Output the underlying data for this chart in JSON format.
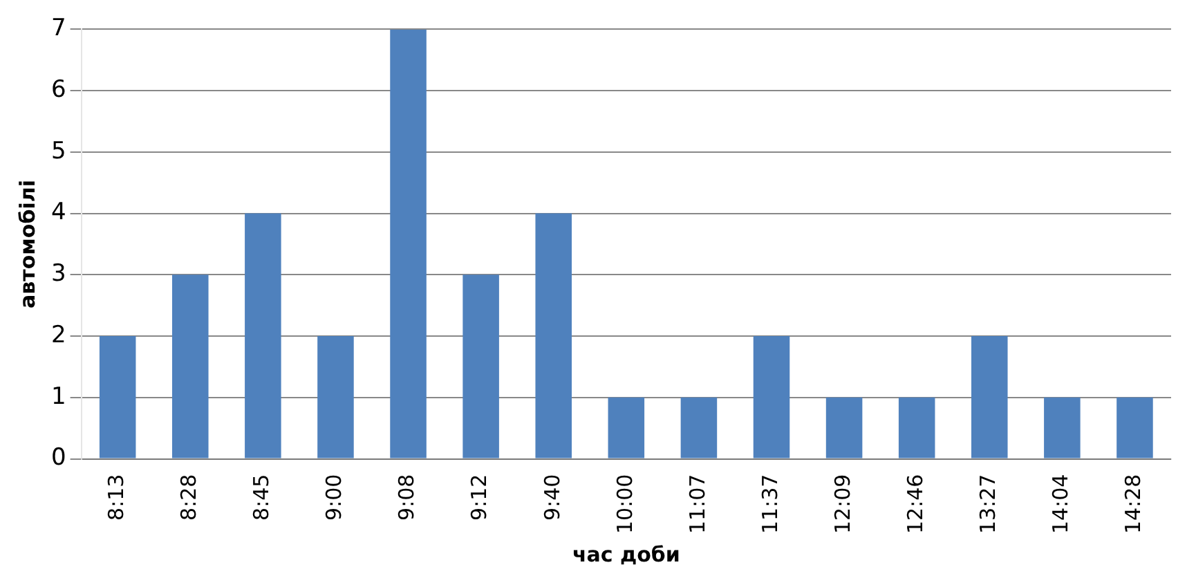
{
  "chart_data": {
    "type": "bar",
    "xlabel": "час доби",
    "ylabel": "автомобілі",
    "categories": [
      "8:13",
      "8:28",
      "8:45",
      "9:00",
      "9:08",
      "9:12",
      "9:40",
      "10:00",
      "11:07",
      "11:37",
      "12:09",
      "12:46",
      "13:27",
      "14:04",
      "14:28"
    ],
    "values": [
      2,
      3,
      4,
      2,
      7,
      3,
      4,
      1,
      1,
      2,
      1,
      1,
      2,
      1,
      1
    ],
    "color": "#4f81bd",
    "ylim": [
      0,
      7
    ],
    "yticks": [
      0,
      1,
      2,
      3,
      4,
      5,
      6,
      7
    ],
    "grid": "y",
    "legend": false
  }
}
